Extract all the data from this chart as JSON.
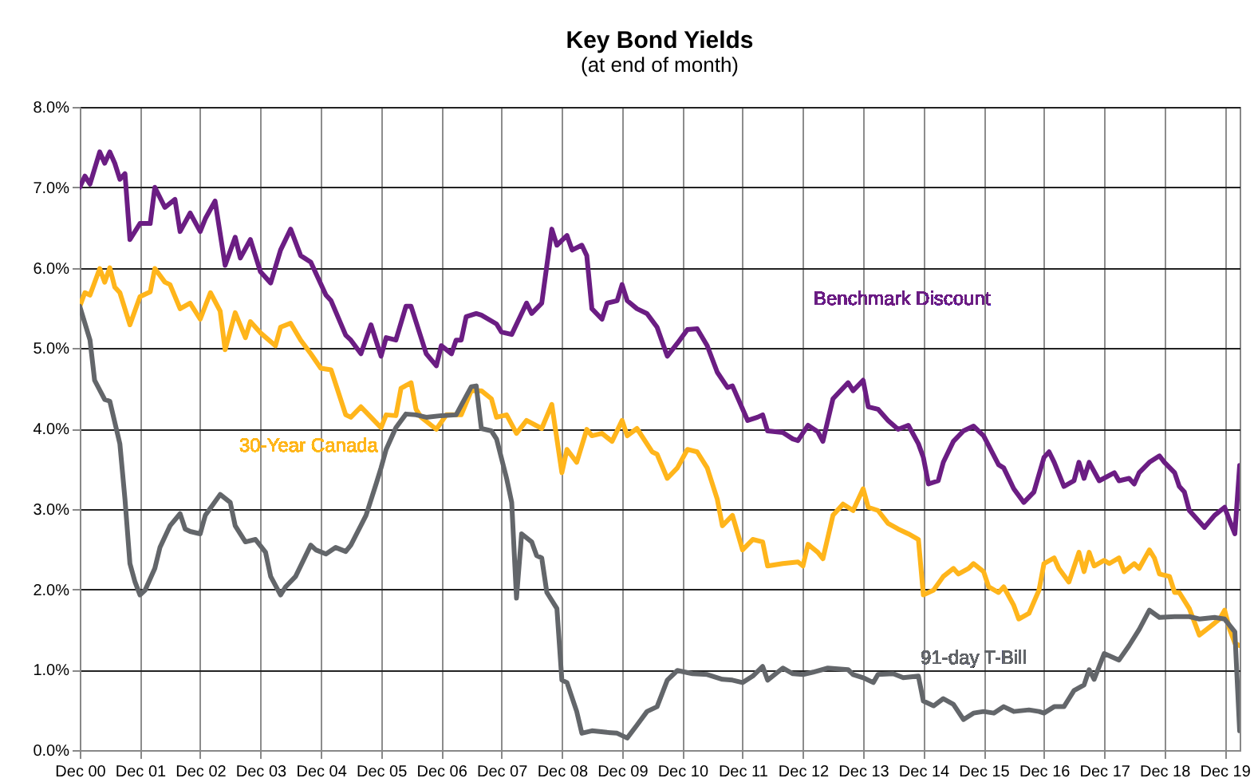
{
  "chart_data": {
    "type": "line",
    "title": "Key Bond Yields",
    "subtitle": "(at end of month)",
    "grid": true,
    "line_style": "solid",
    "xlim": [
      "2000-12",
      "2020-03"
    ],
    "xticks": [
      {
        "value": "2000-12",
        "label": "Dec 00"
      },
      {
        "value": "2001-12",
        "label": "Dec 01"
      },
      {
        "value": "2002-12",
        "label": "Dec 02"
      },
      {
        "value": "2003-12",
        "label": "Dec 03"
      },
      {
        "value": "2004-12",
        "label": "Dec 04"
      },
      {
        "value": "2005-12",
        "label": "Dec 05"
      },
      {
        "value": "2006-12",
        "label": "Dec 06"
      },
      {
        "value": "2007-12",
        "label": "Dec 07"
      },
      {
        "value": "2008-12",
        "label": "Dec 08"
      },
      {
        "value": "2009-12",
        "label": "Dec 09"
      },
      {
        "value": "2010-12",
        "label": "Dec 10"
      },
      {
        "value": "2011-12",
        "label": "Dec 11"
      },
      {
        "value": "2012-12",
        "label": "Dec 12"
      },
      {
        "value": "2013-12",
        "label": "Dec 13"
      },
      {
        "value": "2014-12",
        "label": "Dec 14"
      },
      {
        "value": "2015-12",
        "label": "Dec 15"
      },
      {
        "value": "2016-12",
        "label": "Dec 16"
      },
      {
        "value": "2017-12",
        "label": "Dec 17"
      },
      {
        "value": "2018-12",
        "label": "Dec 18"
      },
      {
        "value": "2019-12",
        "label": "Dec 19"
      }
    ],
    "ylim": [
      0,
      8
    ],
    "yticks": [
      {
        "value": 0,
        "label": "0.0%"
      },
      {
        "value": 1,
        "label": "1.0%"
      },
      {
        "value": 2,
        "label": "2.0%"
      },
      {
        "value": 3,
        "label": "3.0%"
      },
      {
        "value": 4,
        "label": "4.0%"
      },
      {
        "value": 5,
        "label": "5.0%"
      },
      {
        "value": 6,
        "label": "6.0%"
      },
      {
        "value": 7,
        "label": "7.0%"
      },
      {
        "value": 8,
        "label": "8.0%"
      }
    ],
    "series": [
      {
        "name": "Benchmark Discount",
        "color": "#6b1d83",
        "x": [
          "2000-12",
          "2001-01",
          "2001-02",
          "2001-04",
          "2001-05",
          "2001-06",
          "2001-07",
          "2001-08",
          "2001-09",
          "2001-10",
          "2001-12",
          "2002-02",
          "2002-03",
          "2002-05",
          "2002-07",
          "2002-08",
          "2002-10",
          "2002-12",
          "2003-01",
          "2003-03",
          "2003-05",
          "2003-07",
          "2003-08",
          "2003-10",
          "2003-12",
          "2004-02",
          "2004-04",
          "2004-06",
          "2004-08",
          "2004-10",
          "2005-01",
          "2005-02",
          "2005-05",
          "2005-06",
          "2005-08",
          "2005-10",
          "2005-12",
          "2006-01",
          "2006-03",
          "2006-05",
          "2006-06",
          "2006-09",
          "2006-11",
          "2006-12",
          "2007-02",
          "2007-03",
          "2007-04",
          "2007-05",
          "2007-07",
          "2007-08",
          "2007-11",
          "2007-12",
          "2008-02",
          "2008-05",
          "2008-06",
          "2008-08",
          "2008-10",
          "2008-11",
          "2009-01",
          "2009-02",
          "2009-04",
          "2009-05",
          "2009-06",
          "2009-08",
          "2009-09",
          "2009-11",
          "2009-12",
          "2010-01",
          "2010-03",
          "2010-05",
          "2010-07",
          "2010-09",
          "2010-11",
          "2011-01",
          "2011-03",
          "2011-05",
          "2011-07",
          "2011-09",
          "2011-10",
          "2012-01",
          "2012-03",
          "2012-04",
          "2012-05",
          "2012-08",
          "2012-10",
          "2012-11",
          "2013-01",
          "2013-03",
          "2013-04",
          "2013-06",
          "2013-09",
          "2013-10",
          "2013-12",
          "2014-01",
          "2014-03",
          "2014-05",
          "2014-07",
          "2014-09",
          "2014-11",
          "2014-12",
          "2015-01",
          "2015-03",
          "2015-04",
          "2015-06",
          "2015-08",
          "2015-10",
          "2015-12",
          "2016-03",
          "2016-04",
          "2016-06",
          "2016-08",
          "2016-10",
          "2016-12",
          "2017-01",
          "2017-02",
          "2017-04",
          "2017-06",
          "2017-07",
          "2017-08",
          "2017-09",
          "2017-11",
          "2018-02",
          "2018-03",
          "2018-05",
          "2018-06",
          "2018-07",
          "2018-09",
          "2018-11",
          "2018-12",
          "2019-02",
          "2019-03",
          "2019-04",
          "2019-05",
          "2019-08",
          "2019-10",
          "2019-12",
          "2020-01",
          "2020-02",
          "2020-03"
        ],
        "values": [
          7.0,
          7.14,
          7.04,
          7.44,
          7.3,
          7.44,
          7.3,
          7.1,
          7.17,
          6.35,
          6.55,
          6.55,
          7.0,
          6.75,
          6.85,
          6.45,
          6.68,
          6.45,
          6.61,
          6.83,
          6.03,
          6.38,
          6.12,
          6.35,
          5.95,
          5.81,
          6.22,
          6.48,
          6.15,
          6.07,
          5.66,
          5.59,
          5.16,
          5.1,
          4.93,
          5.29,
          4.9,
          5.13,
          5.1,
          5.52,
          5.52,
          4.93,
          4.78,
          5.03,
          4.93,
          5.1,
          5.1,
          5.39,
          5.43,
          5.41,
          5.3,
          5.2,
          5.17,
          5.56,
          5.43,
          5.56,
          6.48,
          6.28,
          6.4,
          6.22,
          6.28,
          6.15,
          5.49,
          5.36,
          5.56,
          5.59,
          5.79,
          5.59,
          5.49,
          5.43,
          5.26,
          4.9,
          5.06,
          5.23,
          5.24,
          5.03,
          4.7,
          4.51,
          4.53,
          4.1,
          4.14,
          4.17,
          3.97,
          3.95,
          3.87,
          3.85,
          4.04,
          3.96,
          3.84,
          4.37,
          4.57,
          4.47,
          4.6,
          4.27,
          4.24,
          4.1,
          3.99,
          4.04,
          3.81,
          3.64,
          3.31,
          3.35,
          3.58,
          3.84,
          3.97,
          4.03,
          3.91,
          3.55,
          3.51,
          3.25,
          3.08,
          3.21,
          3.64,
          3.71,
          3.58,
          3.28,
          3.35,
          3.58,
          3.38,
          3.58,
          3.35,
          3.45,
          3.35,
          3.38,
          3.31,
          3.45,
          3.58,
          3.66,
          3.58,
          3.45,
          3.28,
          3.21,
          2.98,
          2.77,
          2.92,
          3.02,
          2.85,
          2.69,
          3.54
        ]
      },
      {
        "name": "30-Year Canada",
        "color": "#ffb51b",
        "x": [
          "2000-12",
          "2001-01",
          "2001-02",
          "2001-04",
          "2001-05",
          "2001-06",
          "2001-07",
          "2001-08",
          "2001-10",
          "2001-12",
          "2002-02",
          "2002-03",
          "2002-05",
          "2002-06",
          "2002-08",
          "2002-10",
          "2002-12",
          "2003-02",
          "2003-04",
          "2003-05",
          "2003-07",
          "2003-09",
          "2003-10",
          "2003-12",
          "2004-03",
          "2004-04",
          "2004-06",
          "2004-08",
          "2004-10",
          "2004-12",
          "2005-02",
          "2005-05",
          "2005-06",
          "2005-08",
          "2005-10",
          "2005-12",
          "2006-01",
          "2006-03",
          "2006-04",
          "2006-06",
          "2006-07",
          "2006-08",
          "2006-11",
          "2007-01",
          "2007-04",
          "2007-06",
          "2007-08",
          "2007-10",
          "2007-11",
          "2008-01",
          "2008-03",
          "2008-05",
          "2008-08",
          "2008-10",
          "2008-12",
          "2009-01",
          "2009-03",
          "2009-05",
          "2009-06",
          "2009-08",
          "2009-10",
          "2009-12",
          "2010-01",
          "2010-03",
          "2010-06",
          "2010-07",
          "2010-09",
          "2010-11",
          "2011-01",
          "2011-03",
          "2011-05",
          "2011-07",
          "2011-08",
          "2011-10",
          "2011-12",
          "2012-02",
          "2012-04",
          "2012-05",
          "2012-08",
          "2012-11",
          "2012-12",
          "2013-01",
          "2013-03",
          "2013-04",
          "2013-06",
          "2013-08",
          "2013-10",
          "2013-12",
          "2014-01",
          "2014-03",
          "2014-05",
          "2014-07",
          "2014-09",
          "2014-11",
          "2014-12",
          "2015-02",
          "2015-04",
          "2015-06",
          "2015-07",
          "2015-09",
          "2015-10",
          "2015-12",
          "2016-01",
          "2016-03",
          "2016-04",
          "2016-06",
          "2016-07",
          "2016-09",
          "2016-11",
          "2016-12",
          "2017-02",
          "2017-03",
          "2017-05",
          "2017-07",
          "2017-08",
          "2017-09",
          "2017-10",
          "2017-12",
          "2018-01",
          "2018-03",
          "2018-04",
          "2018-06",
          "2018-07",
          "2018-09",
          "2018-10",
          "2018-11",
          "2019-01",
          "2019-02",
          "2019-03",
          "2019-05",
          "2019-07",
          "2019-09",
          "2019-11",
          "2019-12",
          "2020-01",
          "2020-02",
          "2020-03"
        ],
        "values": [
          5.52,
          5.69,
          5.66,
          5.99,
          5.82,
          6.0,
          5.76,
          5.69,
          5.29,
          5.64,
          5.7,
          5.99,
          5.82,
          5.79,
          5.49,
          5.56,
          5.36,
          5.69,
          5.46,
          4.98,
          5.44,
          5.13,
          5.33,
          5.19,
          5.03,
          5.26,
          5.31,
          5.1,
          4.93,
          4.75,
          4.73,
          4.17,
          4.14,
          4.27,
          4.14,
          4.01,
          4.17,
          4.16,
          4.5,
          4.57,
          4.24,
          4.14,
          3.99,
          4.17,
          4.17,
          4.47,
          4.47,
          4.37,
          4.14,
          4.17,
          3.94,
          4.1,
          4.0,
          4.3,
          3.45,
          3.74,
          3.58,
          3.99,
          3.91,
          3.94,
          3.84,
          4.1,
          3.91,
          4.0,
          3.71,
          3.68,
          3.38,
          3.51,
          3.74,
          3.71,
          3.51,
          3.12,
          2.79,
          2.92,
          2.49,
          2.62,
          2.59,
          2.29,
          2.32,
          2.34,
          2.29,
          2.56,
          2.46,
          2.38,
          2.92,
          3.06,
          2.98,
          3.25,
          3.02,
          2.98,
          2.82,
          2.75,
          2.69,
          2.62,
          1.93,
          1.99,
          2.16,
          2.26,
          2.19,
          2.26,
          2.32,
          2.22,
          2.03,
          1.96,
          2.03,
          1.8,
          1.63,
          1.7,
          1.99,
          2.32,
          2.39,
          2.26,
          2.09,
          2.46,
          2.22,
          2.46,
          2.29,
          2.36,
          2.32,
          2.39,
          2.22,
          2.32,
          2.26,
          2.49,
          2.39,
          2.19,
          2.16,
          1.96,
          1.96,
          1.76,
          1.43,
          1.53,
          1.63,
          1.74,
          1.5,
          1.33,
          1.3
        ]
      },
      {
        "name": "91-day T-Bill",
        "color": "#63666a",
        "x": [
          "2000-12",
          "2001-02",
          "2001-03",
          "2001-05",
          "2001-06",
          "2001-08",
          "2001-09",
          "2001-10",
          "2001-11",
          "2001-12",
          "2002-01",
          "2002-03",
          "2002-04",
          "2002-06",
          "2002-08",
          "2002-09",
          "2002-10",
          "2002-12",
          "2003-01",
          "2003-04",
          "2003-06",
          "2003-07",
          "2003-09",
          "2003-11",
          "2004-01",
          "2004-02",
          "2004-04",
          "2004-05",
          "2004-07",
          "2004-10",
          "2004-11",
          "2005-01",
          "2005-03",
          "2005-05",
          "2005-06",
          "2005-09",
          "2005-11",
          "2005-12",
          "2006-01",
          "2006-03",
          "2006-05",
          "2006-07",
          "2006-09",
          "2006-12",
          "2007-03",
          "2007-06",
          "2007-07",
          "2007-08",
          "2007-10",
          "2007-11",
          "2008-01",
          "2008-02",
          "2008-03",
          "2008-04",
          "2008-06",
          "2008-07",
          "2008-08",
          "2008-09",
          "2008-11",
          "2008-12",
          "2009-01",
          "2009-03",
          "2009-04",
          "2009-06",
          "2009-09",
          "2009-11",
          "2010-01",
          "2010-03",
          "2010-05",
          "2010-07",
          "2010-09",
          "2010-11",
          "2011-02",
          "2011-05",
          "2011-08",
          "2011-10",
          "2011-12",
          "2012-02",
          "2012-04",
          "2012-05",
          "2012-08",
          "2012-10",
          "2012-12",
          "2013-02",
          "2013-05",
          "2013-09",
          "2013-10",
          "2013-12",
          "2014-02",
          "2014-03",
          "2014-06",
          "2014-08",
          "2014-11",
          "2014-12",
          "2015-02",
          "2015-04",
          "2015-06",
          "2015-08",
          "2015-10",
          "2015-12",
          "2016-02",
          "2016-04",
          "2016-06",
          "2016-09",
          "2016-11",
          "2016-12",
          "2017-02",
          "2017-04",
          "2017-06",
          "2017-08",
          "2017-09",
          "2017-10",
          "2017-12",
          "2018-03",
          "2018-05",
          "2018-07",
          "2018-09",
          "2018-11",
          "2019-02",
          "2019-05",
          "2019-07",
          "2019-10",
          "2019-12",
          "2020-02",
          "2020-03"
        ],
        "values": [
          5.52,
          5.1,
          4.6,
          4.36,
          4.34,
          3.81,
          3.12,
          2.32,
          2.09,
          1.93,
          1.99,
          2.26,
          2.52,
          2.79,
          2.94,
          2.75,
          2.72,
          2.69,
          2.92,
          3.18,
          3.08,
          2.79,
          2.59,
          2.62,
          2.46,
          2.16,
          1.93,
          2.03,
          2.16,
          2.55,
          2.49,
          2.44,
          2.52,
          2.47,
          2.55,
          2.92,
          3.31,
          3.51,
          3.74,
          4.01,
          4.18,
          4.17,
          4.14,
          4.16,
          4.17,
          4.52,
          4.53,
          4.0,
          3.97,
          3.87,
          3.38,
          3.08,
          1.89,
          2.69,
          2.59,
          2.42,
          2.39,
          1.96,
          1.76,
          0.87,
          0.84,
          0.48,
          0.21,
          0.24,
          0.22,
          0.21,
          0.15,
          0.31,
          0.48,
          0.54,
          0.87,
          0.99,
          0.95,
          0.94,
          0.88,
          0.87,
          0.84,
          0.92,
          1.04,
          0.87,
          1.02,
          0.95,
          0.94,
          0.97,
          1.02,
          1.0,
          0.94,
          0.9,
          0.84,
          0.94,
          0.95,
          0.9,
          0.92,
          0.61,
          0.55,
          0.64,
          0.57,
          0.38,
          0.46,
          0.48,
          0.46,
          0.54,
          0.48,
          0.5,
          0.48,
          0.46,
          0.54,
          0.54,
          0.74,
          0.81,
          1.0,
          0.88,
          1.2,
          1.12,
          1.3,
          1.5,
          1.74,
          1.65,
          1.66,
          1.66,
          1.63,
          1.65,
          1.63,
          1.47,
          0.24
        ]
      }
    ]
  }
}
